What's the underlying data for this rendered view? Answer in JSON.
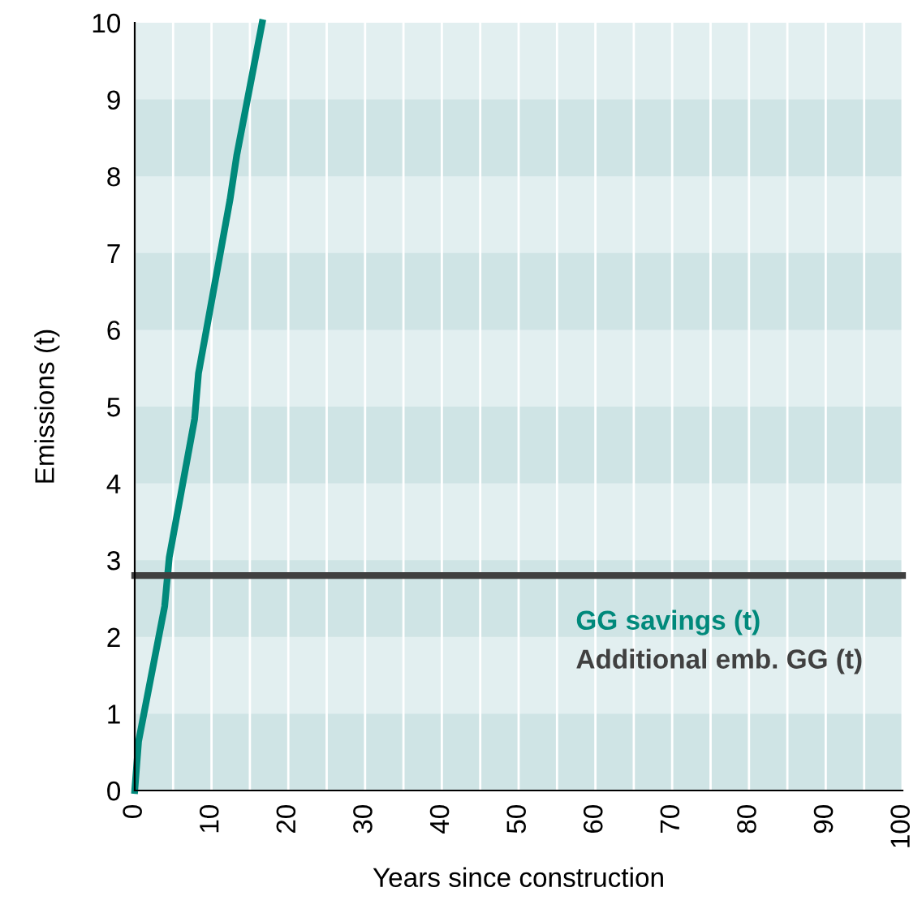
{
  "chart_data": {
    "type": "line",
    "xlabel": "Years since construction",
    "ylabel": "Emissions (t)",
    "series": [
      {
        "name": "GG savings (t)",
        "color": "#00897b",
        "x": [
          0,
          0.5,
          3.9,
          4.5,
          7.8,
          8.3,
          12.4,
          13.3,
          16.6
        ],
        "values": [
          0,
          0.64,
          2.4,
          3.04,
          4.84,
          5.43,
          7.69,
          8.28,
          10
        ]
      },
      {
        "name": "Additional emb. GG (t)",
        "color": "#404040",
        "x": [
          0,
          100
        ],
        "values": [
          2.8,
          2.8
        ]
      }
    ],
    "xlim": [
      0,
      100
    ],
    "ylim": [
      0,
      10
    ],
    "xticks": [
      0,
      {
        "value": 5,
        "label": null
      },
      10,
      {
        "value": 15,
        "label": null
      },
      20,
      {
        "value": 25,
        "label": null
      },
      30,
      {
        "value": 35,
        "label": null
      },
      40,
      {
        "value": 45,
        "label": null
      },
      50,
      {
        "value": 55,
        "label": null
      },
      60,
      {
        "value": 65,
        "label": null
      },
      70,
      {
        "value": 75,
        "label": null
      },
      80,
      {
        "value": 85,
        "label": null
      },
      90,
      {
        "value": 95,
        "label": null
      },
      100
    ],
    "yticks": [
      0,
      1,
      2,
      3,
      4,
      5,
      6,
      7,
      8,
      9,
      10
    ],
    "bands": [
      {
        "axis": "y",
        "from": 0,
        "to": 1,
        "color": "#cfe4e5"
      },
      {
        "axis": "y",
        "from": 2,
        "to": 3,
        "color": "#cfe4e5"
      },
      {
        "axis": "y",
        "from": 4,
        "to": 5,
        "color": "#cfe4e5"
      },
      {
        "axis": "y",
        "from": 6,
        "to": 7,
        "color": "#cfe4e5"
      },
      {
        "axis": "y",
        "from": 8,
        "to": 9,
        "color": "#cfe4e5"
      }
    ],
    "grid": "x",
    "legend": "bottom right"
  }
}
